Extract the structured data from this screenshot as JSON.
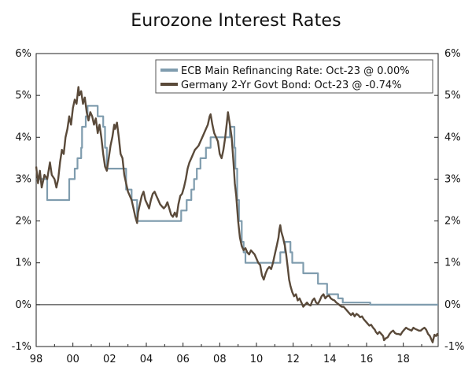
{
  "chart_data": {
    "type": "line",
    "title": "Eurozone Interest Rates",
    "xlabel": "",
    "ylabel": "",
    "xlim": [
      1998.0,
      2019.9
    ],
    "ylim": [
      -1,
      6
    ],
    "x_ticks": [
      {
        "value": 1998,
        "label": "98"
      },
      {
        "value": 2000,
        "label": "00"
      },
      {
        "value": 2002,
        "label": "02"
      },
      {
        "value": 2004,
        "label": "04"
      },
      {
        "value": 2006,
        "label": "06"
      },
      {
        "value": 2008,
        "label": "08"
      },
      {
        "value": 2010,
        "label": "10"
      },
      {
        "value": 2012,
        "label": "12"
      },
      {
        "value": 2014,
        "label": "14"
      },
      {
        "value": 2016,
        "label": "16"
      },
      {
        "value": 2018,
        "label": "18"
      }
    ],
    "y_ticks": [
      {
        "value": -1,
        "label": "-1%"
      },
      {
        "value": 0,
        "label": "0%"
      },
      {
        "value": 1,
        "label": "1%"
      },
      {
        "value": 2,
        "label": "2%"
      },
      {
        "value": 3,
        "label": "3%"
      },
      {
        "value": 4,
        "label": "4%"
      },
      {
        "value": 5,
        "label": "5%"
      },
      {
        "value": 6,
        "label": "6%"
      }
    ],
    "grid": false,
    "legend_position": "top-right",
    "series": [
      {
        "name": "ECB Main Refinancing Rate: Oct-23 @ 0.00%",
        "color": "#7f9cae",
        "step": true,
        "points": [
          [
            1998.0,
            3.0
          ],
          [
            1998.6,
            2.5
          ],
          [
            1999.3,
            2.5
          ],
          [
            1999.8,
            3.0
          ],
          [
            2000.1,
            3.25
          ],
          [
            2000.25,
            3.5
          ],
          [
            2000.45,
            3.75
          ],
          [
            2000.5,
            4.25
          ],
          [
            2000.7,
            4.5
          ],
          [
            2000.8,
            4.75
          ],
          [
            2001.35,
            4.5
          ],
          [
            2001.65,
            4.25
          ],
          [
            2001.75,
            3.75
          ],
          [
            2001.85,
            3.25
          ],
          [
            2002.9,
            2.75
          ],
          [
            2003.2,
            2.5
          ],
          [
            2003.5,
            2.0
          ],
          [
            2005.9,
            2.25
          ],
          [
            2006.2,
            2.5
          ],
          [
            2006.45,
            2.75
          ],
          [
            2006.6,
            3.0
          ],
          [
            2006.75,
            3.25
          ],
          [
            2006.95,
            3.5
          ],
          [
            2007.25,
            3.75
          ],
          [
            2007.5,
            4.0
          ],
          [
            2008.55,
            4.25
          ],
          [
            2008.8,
            3.75
          ],
          [
            2008.85,
            3.25
          ],
          [
            2008.95,
            2.5
          ],
          [
            2009.05,
            2.0
          ],
          [
            2009.2,
            1.5
          ],
          [
            2009.3,
            1.25
          ],
          [
            2009.4,
            1.0
          ],
          [
            2011.3,
            1.25
          ],
          [
            2011.55,
            1.5
          ],
          [
            2011.85,
            1.25
          ],
          [
            2011.95,
            1.0
          ],
          [
            2012.55,
            0.75
          ],
          [
            2013.35,
            0.5
          ],
          [
            2013.85,
            0.25
          ],
          [
            2014.45,
            0.15
          ],
          [
            2014.7,
            0.05
          ],
          [
            2016.2,
            0.0
          ],
          [
            2019.9,
            0.0
          ]
        ]
      },
      {
        "name": "Germany 2-Yr Govt Bond: Oct-23 @ -0.74%",
        "color": "#5a4a3a",
        "step": false,
        "points": [
          [
            1998.0,
            3.3
          ],
          [
            1998.1,
            2.9
          ],
          [
            1998.2,
            3.2
          ],
          [
            1998.3,
            2.8
          ],
          [
            1998.45,
            3.1
          ],
          [
            1998.6,
            3.0
          ],
          [
            1998.75,
            3.4
          ],
          [
            1998.85,
            3.1
          ],
          [
            1999.0,
            3.0
          ],
          [
            1999.1,
            2.8
          ],
          [
            1999.2,
            3.0
          ],
          [
            1999.3,
            3.4
          ],
          [
            1999.4,
            3.7
          ],
          [
            1999.5,
            3.6
          ],
          [
            1999.6,
            4.0
          ],
          [
            1999.7,
            4.2
          ],
          [
            1999.8,
            4.5
          ],
          [
            1999.9,
            4.3
          ],
          [
            2000.0,
            4.7
          ],
          [
            2000.1,
            4.9
          ],
          [
            2000.2,
            4.8
          ],
          [
            2000.3,
            5.2
          ],
          [
            2000.35,
            5.0
          ],
          [
            2000.45,
            5.1
          ],
          [
            2000.55,
            4.8
          ],
          [
            2000.65,
            4.95
          ],
          [
            2000.75,
            4.6
          ],
          [
            2000.85,
            4.4
          ],
          [
            2000.95,
            4.6
          ],
          [
            2001.05,
            4.5
          ],
          [
            2001.15,
            4.3
          ],
          [
            2001.25,
            4.45
          ],
          [
            2001.35,
            4.1
          ],
          [
            2001.45,
            4.3
          ],
          [
            2001.55,
            4.0
          ],
          [
            2001.65,
            3.6
          ],
          [
            2001.75,
            3.3
          ],
          [
            2001.85,
            3.2
          ],
          [
            2001.95,
            3.5
          ],
          [
            2002.05,
            3.8
          ],
          [
            2002.15,
            4.0
          ],
          [
            2002.25,
            4.3
          ],
          [
            2002.3,
            4.2
          ],
          [
            2002.4,
            4.35
          ],
          [
            2002.5,
            4.0
          ],
          [
            2002.6,
            3.6
          ],
          [
            2002.7,
            3.5
          ],
          [
            2002.8,
            3.1
          ],
          [
            2002.9,
            2.9
          ],
          [
            2003.0,
            2.7
          ],
          [
            2003.1,
            2.6
          ],
          [
            2003.2,
            2.5
          ],
          [
            2003.3,
            2.3
          ],
          [
            2003.4,
            2.1
          ],
          [
            2003.5,
            1.95
          ],
          [
            2003.55,
            2.2
          ],
          [
            2003.65,
            2.4
          ],
          [
            2003.75,
            2.6
          ],
          [
            2003.85,
            2.7
          ],
          [
            2003.95,
            2.5
          ],
          [
            2004.05,
            2.4
          ],
          [
            2004.15,
            2.3
          ],
          [
            2004.25,
            2.5
          ],
          [
            2004.35,
            2.65
          ],
          [
            2004.45,
            2.7
          ],
          [
            2004.55,
            2.6
          ],
          [
            2004.65,
            2.5
          ],
          [
            2004.75,
            2.4
          ],
          [
            2004.85,
            2.35
          ],
          [
            2004.95,
            2.3
          ],
          [
            2005.05,
            2.35
          ],
          [
            2005.15,
            2.45
          ],
          [
            2005.25,
            2.3
          ],
          [
            2005.35,
            2.15
          ],
          [
            2005.45,
            2.1
          ],
          [
            2005.55,
            2.2
          ],
          [
            2005.65,
            2.1
          ],
          [
            2005.75,
            2.4
          ],
          [
            2005.85,
            2.6
          ],
          [
            2005.95,
            2.65
          ],
          [
            2006.05,
            2.8
          ],
          [
            2006.15,
            3.0
          ],
          [
            2006.25,
            3.25
          ],
          [
            2006.35,
            3.4
          ],
          [
            2006.45,
            3.5
          ],
          [
            2006.55,
            3.6
          ],
          [
            2006.65,
            3.7
          ],
          [
            2006.75,
            3.75
          ],
          [
            2006.85,
            3.8
          ],
          [
            2006.95,
            3.9
          ],
          [
            2007.05,
            4.0
          ],
          [
            2007.15,
            4.1
          ],
          [
            2007.25,
            4.2
          ],
          [
            2007.35,
            4.3
          ],
          [
            2007.45,
            4.5
          ],
          [
            2007.5,
            4.55
          ],
          [
            2007.6,
            4.3
          ],
          [
            2007.7,
            4.1
          ],
          [
            2007.8,
            4.0
          ],
          [
            2007.9,
            3.9
          ],
          [
            2008.0,
            3.6
          ],
          [
            2008.1,
            3.5
          ],
          [
            2008.2,
            3.7
          ],
          [
            2008.3,
            4.0
          ],
          [
            2008.4,
            4.4
          ],
          [
            2008.45,
            4.6
          ],
          [
            2008.55,
            4.3
          ],
          [
            2008.65,
            4.0
          ],
          [
            2008.75,
            3.4
          ],
          [
            2008.82,
            2.9
          ],
          [
            2008.9,
            2.6
          ],
          [
            2009.0,
            2.0
          ],
          [
            2009.1,
            1.6
          ],
          [
            2009.2,
            1.4
          ],
          [
            2009.3,
            1.3
          ],
          [
            2009.4,
            1.35
          ],
          [
            2009.5,
            1.25
          ],
          [
            2009.6,
            1.2
          ],
          [
            2009.7,
            1.3
          ],
          [
            2009.8,
            1.25
          ],
          [
            2009.9,
            1.2
          ],
          [
            2010.0,
            1.1
          ],
          [
            2010.1,
            1.0
          ],
          [
            2010.2,
            0.95
          ],
          [
            2010.3,
            0.7
          ],
          [
            2010.4,
            0.6
          ],
          [
            2010.5,
            0.75
          ],
          [
            2010.6,
            0.85
          ],
          [
            2010.7,
            0.9
          ],
          [
            2010.8,
            0.85
          ],
          [
            2010.9,
            1.0
          ],
          [
            2011.0,
            1.2
          ],
          [
            2011.1,
            1.4
          ],
          [
            2011.2,
            1.6
          ],
          [
            2011.25,
            1.8
          ],
          [
            2011.3,
            1.9
          ],
          [
            2011.35,
            1.75
          ],
          [
            2011.45,
            1.6
          ],
          [
            2011.55,
            1.4
          ],
          [
            2011.62,
            1.2
          ],
          [
            2011.7,
            0.9
          ],
          [
            2011.78,
            0.6
          ],
          [
            2011.85,
            0.45
          ],
          [
            2011.95,
            0.3
          ],
          [
            2012.05,
            0.2
          ],
          [
            2012.15,
            0.25
          ],
          [
            2012.25,
            0.1
          ],
          [
            2012.35,
            0.15
          ],
          [
            2012.45,
            0.05
          ],
          [
            2012.55,
            -0.05
          ],
          [
            2012.65,
            0.0
          ],
          [
            2012.75,
            0.05
          ],
          [
            2012.85,
            0.0
          ],
          [
            2012.95,
            -0.02
          ],
          [
            2013.05,
            0.1
          ],
          [
            2013.15,
            0.15
          ],
          [
            2013.25,
            0.05
          ],
          [
            2013.35,
            0.02
          ],
          [
            2013.45,
            0.1
          ],
          [
            2013.55,
            0.2
          ],
          [
            2013.65,
            0.25
          ],
          [
            2013.75,
            0.15
          ],
          [
            2013.85,
            0.2
          ],
          [
            2013.95,
            0.22
          ],
          [
            2014.05,
            0.15
          ],
          [
            2014.15,
            0.12
          ],
          [
            2014.25,
            0.1
          ],
          [
            2014.35,
            0.05
          ],
          [
            2014.45,
            0.02
          ],
          [
            2014.55,
            -0.02
          ],
          [
            2014.65,
            -0.05
          ],
          [
            2014.75,
            -0.05
          ],
          [
            2014.85,
            -0.1
          ],
          [
            2014.95,
            -0.15
          ],
          [
            2015.05,
            -0.2
          ],
          [
            2015.15,
            -0.25
          ],
          [
            2015.25,
            -0.2
          ],
          [
            2015.35,
            -0.28
          ],
          [
            2015.45,
            -0.22
          ],
          [
            2015.55,
            -0.25
          ],
          [
            2015.65,
            -0.3
          ],
          [
            2015.75,
            -0.28
          ],
          [
            2015.85,
            -0.35
          ],
          [
            2015.95,
            -0.4
          ],
          [
            2016.05,
            -0.45
          ],
          [
            2016.15,
            -0.5
          ],
          [
            2016.25,
            -0.48
          ],
          [
            2016.35,
            -0.55
          ],
          [
            2016.45,
            -0.6
          ],
          [
            2016.5,
            -0.65
          ],
          [
            2016.6,
            -0.7
          ],
          [
            2016.7,
            -0.65
          ],
          [
            2016.8,
            -0.7
          ],
          [
            2016.9,
            -0.75
          ],
          [
            2016.95,
            -0.85
          ],
          [
            2017.05,
            -0.8
          ],
          [
            2017.15,
            -0.78
          ],
          [
            2017.25,
            -0.7
          ],
          [
            2017.35,
            -0.65
          ],
          [
            2017.45,
            -0.62
          ],
          [
            2017.55,
            -0.68
          ],
          [
            2017.65,
            -0.7
          ],
          [
            2017.75,
            -0.7
          ],
          [
            2017.85,
            -0.72
          ],
          [
            2017.95,
            -0.65
          ],
          [
            2018.05,
            -0.6
          ],
          [
            2018.15,
            -0.55
          ],
          [
            2018.25,
            -0.58
          ],
          [
            2018.35,
            -0.6
          ],
          [
            2018.45,
            -0.62
          ],
          [
            2018.55,
            -0.55
          ],
          [
            2018.65,
            -0.58
          ],
          [
            2018.75,
            -0.6
          ],
          [
            2018.85,
            -0.62
          ],
          [
            2018.95,
            -0.62
          ],
          [
            2019.05,
            -0.58
          ],
          [
            2019.15,
            -0.55
          ],
          [
            2019.25,
            -0.6
          ],
          [
            2019.35,
            -0.7
          ],
          [
            2019.45,
            -0.75
          ],
          [
            2019.55,
            -0.85
          ],
          [
            2019.6,
            -0.9
          ],
          [
            2019.65,
            -0.8
          ],
          [
            2019.7,
            -0.72
          ],
          [
            2019.78,
            -0.75
          ],
          [
            2019.85,
            -0.7
          ],
          [
            2019.9,
            -0.74
          ]
        ]
      }
    ]
  }
}
